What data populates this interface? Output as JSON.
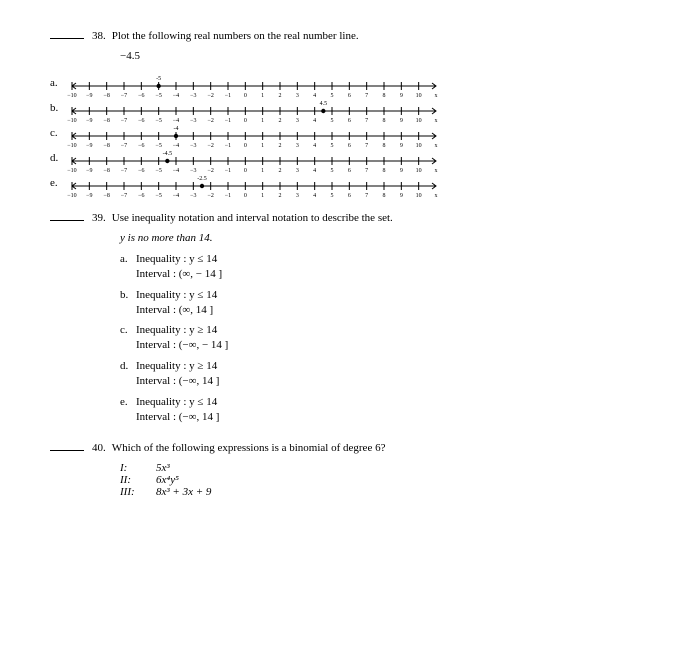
{
  "q38": {
    "number": "38.",
    "text": "Plot the following real numbers on the real number line.",
    "value": "−4.5",
    "ticks": [
      "−10",
      "−9",
      "−8",
      "−7",
      "−6",
      "−5",
      "−4",
      "−3",
      "−2",
      "−1",
      "0",
      "1",
      "2",
      "3",
      "4",
      "5",
      "6",
      "7",
      "8",
      "9",
      "10",
      "x"
    ],
    "options": [
      {
        "label": "a.",
        "point": -5,
        "labelAbove": "-5",
        "filled": true
      },
      {
        "label": "b.",
        "point": 4.5,
        "labelAbove": "4.5",
        "filled": true
      },
      {
        "label": "c.",
        "point": -4,
        "labelAbove": "-4",
        "filled": true
      },
      {
        "label": "d.",
        "point": -4.5,
        "labelAbove": "-4.5",
        "filled": true
      },
      {
        "label": "e.",
        "point": -2.5,
        "labelAbove": "-2.5",
        "filled": true
      }
    ],
    "style": {
      "line_color": "#000",
      "tick_height": 4,
      "point_radius": 2.2,
      "font_size": 6
    }
  },
  "q39": {
    "number": "39.",
    "text": "Use inequality notation and interval notation to describe the set.",
    "given": "y is no more than  14.",
    "choices": [
      {
        "label": "a.",
        "l1": "Inequality :  y ≤ 14",
        "l2": "Interval :  (∞, − 14 ]"
      },
      {
        "label": "b.",
        "l1": "Inequality :  y ≤ 14",
        "l2": "Interval :  (∞, 14 ]"
      },
      {
        "label": "c.",
        "l1": "Inequality :  y ≥ 14",
        "l2": "Interval :  (−∞, − 14 ]"
      },
      {
        "label": "d.",
        "l1": "Inequality :  y ≥ 14",
        "l2": "Interval :  (−∞, 14 ]"
      },
      {
        "label": "e.",
        "l1": "Inequality :  y ≤ 14",
        "l2": "Interval :  (−∞, 14 ]"
      }
    ]
  },
  "q40": {
    "number": "40.",
    "text": "Which of the following expressions is a binomial of degree 6?",
    "rows": [
      {
        "roman": "I:",
        "expr": "5x³"
      },
      {
        "roman": "II:",
        "expr": "6x⁴y⁵"
      },
      {
        "roman": "III:",
        "expr": "8x³ + 3x + 9"
      }
    ]
  }
}
